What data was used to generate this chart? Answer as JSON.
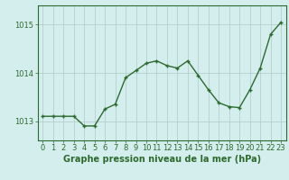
{
  "x": [
    0,
    1,
    2,
    3,
    4,
    5,
    6,
    7,
    8,
    9,
    10,
    11,
    12,
    13,
    14,
    15,
    16,
    17,
    18,
    19,
    20,
    21,
    22,
    23
  ],
  "y": [
    1013.1,
    1013.1,
    1013.1,
    1013.1,
    1012.9,
    1012.9,
    1013.25,
    1013.35,
    1013.9,
    1014.05,
    1014.2,
    1014.25,
    1014.15,
    1014.1,
    1014.25,
    1013.95,
    1013.65,
    1013.38,
    1013.3,
    1013.28,
    1013.65,
    1014.1,
    1014.8,
    1015.05
  ],
  "line_color": "#2d6a2d",
  "marker_color": "#2d6a2d",
  "bg_color": "#d4eeee",
  "grid_color": "#b0c8c8",
  "xlabel": "Graphe pression niveau de la mer (hPa)",
  "xlabel_fontsize": 7,
  "yticks": [
    1013,
    1014,
    1015
  ],
  "ylim": [
    1012.6,
    1015.4
  ],
  "xlim": [
    -0.5,
    23.5
  ],
  "tick_fontsize": 6,
  "linewidth": 1.0,
  "markersize": 3.5
}
